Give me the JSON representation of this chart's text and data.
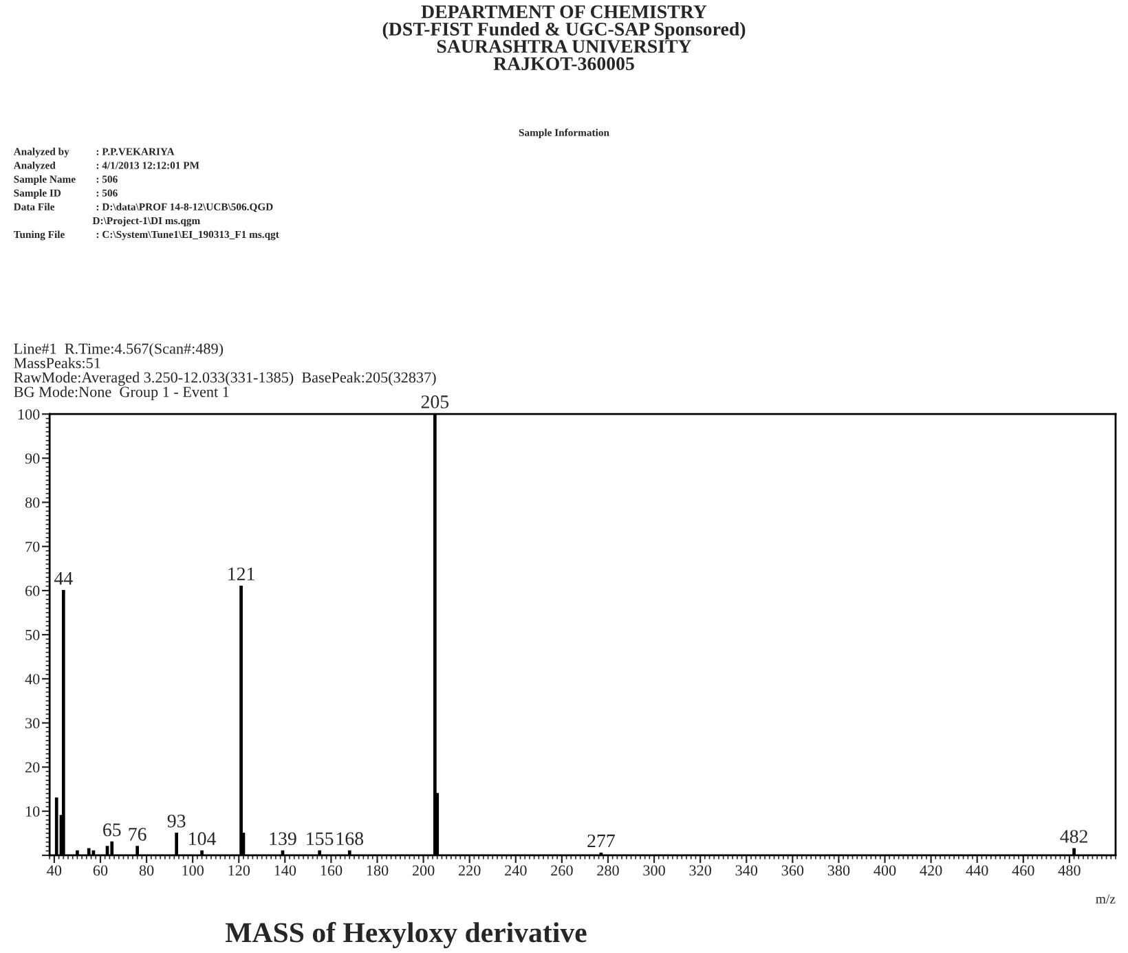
{
  "chart_data": {
    "type": "bar",
    "title": "DEPARTMENT OF CHEMISTRY\n(DST-FIST Funded & UGC-SAP Sponsored)\nSAURASHTRA UNIVERSITY\nRAJKOT-360005",
    "subtitle": "Line#1  R.Time:4.567(Scan#:489)\nMassPeaks:51\nRawMode:Averaged 3.250-12.033(331-1385)  BasePeak:205(32837)\nBG Mode:None  Group 1 - Event 1",
    "xlabel": "m/z",
    "annotations": [
      "Sample Information",
      "Analyzed by",
      ": P.P.VEKARIYA",
      "Analyzed",
      ": 4/1/2013 12:12:01 PM",
      "Sample Name",
      ": 506",
      "Sample ID",
      ": 506",
      "Data File",
      ": D:\\data\\PROF 14-8-12\\UCB\\506.QGD",
      "D:\\Project-1\\DI ms.qgm",
      "Tuning File",
      ": C:\\System\\Tune1\\EI_190313_F1 ms.qgt",
      "MASS of Hexyloxy derivative",
      {
        "text": "44",
        "x": 44,
        "y": 60
      },
      {
        "text": "65",
        "x": 65,
        "y": 3
      },
      {
        "text": "76",
        "x": 76,
        "y": 2
      },
      {
        "text": "93",
        "x": 93,
        "y": 5
      },
      {
        "text": "104",
        "x": 104,
        "y": 1
      },
      {
        "text": "121",
        "x": 121,
        "y": 61
      },
      {
        "text": "139",
        "x": 139,
        "y": 1
      },
      {
        "text": "155",
        "x": 155,
        "y": 1
      },
      {
        "text": "168",
        "x": 168,
        "y": 1
      },
      {
        "text": "205",
        "x": 205,
        "y": 100
      },
      {
        "text": "277",
        "x": 277,
        "y": 0.5
      },
      {
        "text": "482",
        "x": 482,
        "y": 1.5
      }
    ],
    "x": [
      41,
      43,
      44,
      50,
      55,
      57,
      63,
      65,
      76,
      93,
      104,
      121,
      122,
      139,
      155,
      168,
      205,
      206,
      277,
      482
    ],
    "values": [
      13,
      9,
      60,
      1,
      1.5,
      1,
      2,
      3,
      2,
      5,
      1,
      61,
      5,
      1,
      1,
      1,
      100,
      14,
      0.5,
      1.5
    ],
    "color": "#000000",
    "xlim": [
      38,
      500
    ],
    "ylim": [
      0,
      100
    ],
    "xticks": [
      40,
      60,
      80,
      100,
      120,
      140,
      160,
      180,
      200,
      220,
      240,
      260,
      280,
      300,
      320,
      340,
      360,
      380,
      400,
      420,
      440,
      460,
      480
    ],
    "yticks": [
      {
        "value": 0,
        "label": null
      },
      10,
      20,
      30,
      40,
      50,
      60,
      70,
      80,
      90,
      100
    ],
    "grid": false,
    "legend": false
  }
}
